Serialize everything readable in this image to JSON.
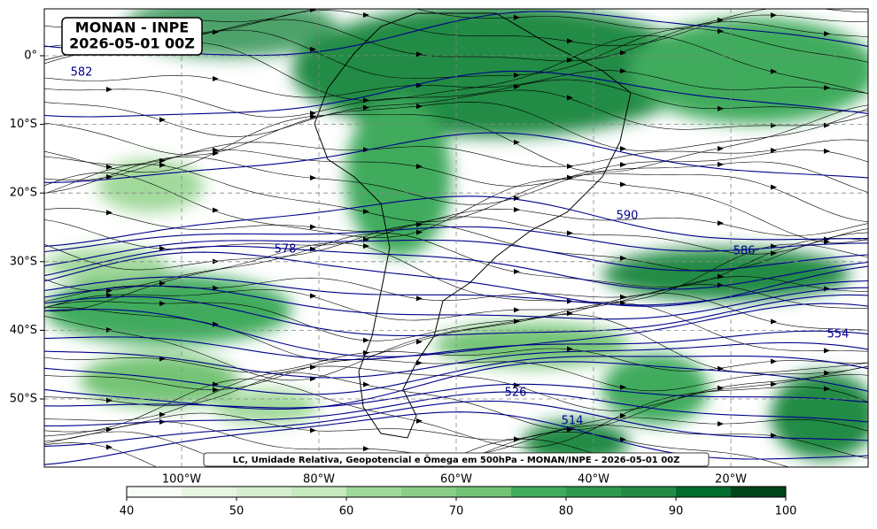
{
  "map": {
    "title": "MONAN - INPE",
    "subtitle": "2026-05-01 00Z",
    "caption": "LC, Umidade Relativa, Geopotencial e Ômega em 500hPa - MONAN/INPE - 2026-05-01 00Z",
    "lat_ticks": [
      {
        "value": 0,
        "label": "0°"
      },
      {
        "value": -10,
        "label": "10°S"
      },
      {
        "value": -20,
        "label": "20°S"
      },
      {
        "value": -30,
        "label": "30°S"
      },
      {
        "value": -40,
        "label": "40°S"
      },
      {
        "value": -50,
        "label": "50°S"
      }
    ],
    "lon_ticks": [
      {
        "value": -100,
        "label": "100°W"
      },
      {
        "value": -80,
        "label": "80°W"
      },
      {
        "value": -60,
        "label": "60°W"
      },
      {
        "value": -40,
        "label": "40°W"
      },
      {
        "value": -20,
        "label": "20°W"
      }
    ],
    "contour_labels": [
      582,
      578,
      590,
      586,
      554,
      526,
      514
    ],
    "colorbar": {
      "range": [
        40,
        100
      ],
      "ticks": [
        40,
        50,
        60,
        70,
        80,
        90,
        100
      ],
      "colors": [
        "#f7fcf5",
        "#e5f5e0",
        "#d6efd0",
        "#c7e9c0",
        "#a1d99b",
        "#8ace88",
        "#74c476",
        "#41ab5d",
        "#2f9a4f",
        "#238b45",
        "#006d2c",
        "#00441b"
      ]
    }
  }
}
